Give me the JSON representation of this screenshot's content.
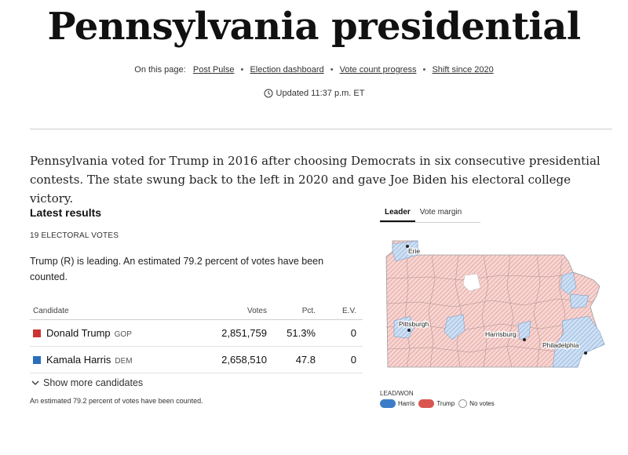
{
  "header": {
    "title": "Pennsylvania presidential",
    "on_this_page_label": "On this page:",
    "links": [
      "Post Pulse",
      "Election dashboard",
      "Vote count progress",
      "Shift since 2020"
    ],
    "separator": "•",
    "updated": "Updated 11:37 p.m. ET"
  },
  "intro": "Pennsylvania voted for Trump in 2016 after choosing Democrats in six consecutive presidential contests. The state swung back to the left in 2020 and gave Joe Biden his electoral college victory.",
  "results": {
    "title": "Latest results",
    "electoral_votes": "19 ELECTORAL VOTES",
    "status": "Trump (R) is leading. An estimated 79.2 percent of votes have been counted.",
    "columns": [
      "Candidate",
      "Votes",
      "Pct.",
      "E.V."
    ],
    "rows": [
      {
        "name": "Donald Trump",
        "party": "GOP",
        "votes": "2,851,759",
        "pct": "51.3%",
        "ev": "0",
        "color": "#cc3333"
      },
      {
        "name": "Kamala Harris",
        "party": "DEM",
        "votes": "2,658,510",
        "pct": "47.8",
        "ev": "0",
        "color": "#2a6ebb"
      }
    ],
    "show_more": "Show more candidates",
    "footnote": "An estimated 79.2 percent of votes have been counted."
  },
  "map": {
    "tabs": [
      "Leader",
      "Vote margin"
    ],
    "active_tab": "Leader",
    "cities": [
      "Erie",
      "Pittsburgh",
      "Harrisburg",
      "Philadelphia"
    ],
    "legend_title": "LEAD/WON",
    "legend": [
      "Harris",
      "Trump",
      "No votes"
    ],
    "colors": {
      "harris": "#3b7cc9",
      "trump": "#d8564f",
      "harris_fill": "#cfe0f3",
      "trump_fill": "#f6d6d3"
    }
  }
}
